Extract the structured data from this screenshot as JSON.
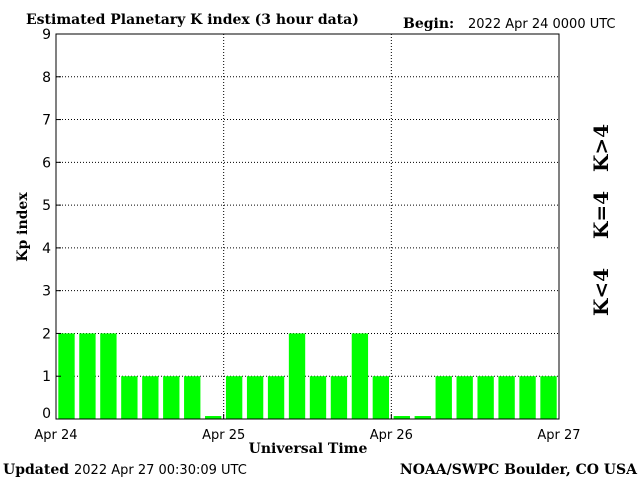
{
  "header": {
    "title": "Estimated Planetary K index (3 hour data)",
    "begin_label": "Begin:",
    "begin_value": "2022 Apr 24 0000 UTC"
  },
  "footer": {
    "updated_label": "Updated",
    "updated_value": "2022 Apr 27 00:30:09 UTC",
    "credit": "NOAA/SWPC Boulder, CO USA"
  },
  "legend": {
    "greater": "K>4",
    "equal": "K=4",
    "less": "K<4"
  },
  "colors": {
    "less_than_4": "#00ff00",
    "equal_4": "#ffd700",
    "greater_than_4": "#ff2000"
  },
  "chart_data": {
    "type": "bar",
    "title": "Estimated Planetary K index (3 hour data)",
    "xlabel": "Universal Time",
    "ylabel": "Kp index",
    "ylim": [
      0,
      9
    ],
    "yticks": [
      "0",
      "1",
      "2",
      "3",
      "4",
      "5",
      "6",
      "7",
      "8",
      "9"
    ],
    "xticks": [
      "Apr 24",
      "Apr 25",
      "Apr 26",
      "Apr 27"
    ],
    "grid": true,
    "legend_position": "right",
    "bin_hours": 3,
    "values": [
      2,
      2,
      2,
      1,
      1,
      1,
      1,
      0.07,
      1,
      1,
      1,
      2,
      1,
      1,
      2,
      1,
      0.07,
      0.07,
      1,
      1,
      1,
      1,
      1,
      1
    ]
  }
}
